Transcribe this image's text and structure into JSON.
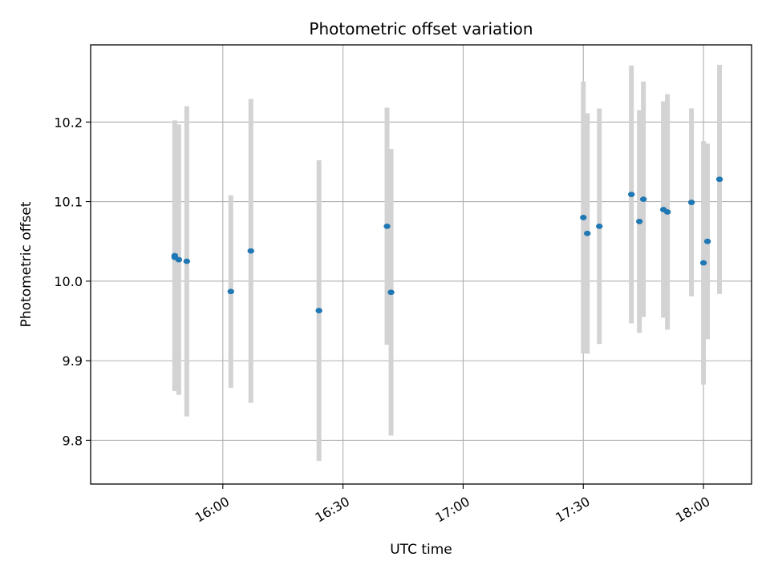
{
  "chart_data": {
    "type": "scatter",
    "title": "Photometric offset variation",
    "xlabel": "UTC time",
    "ylabel": "Photometric offset",
    "x_unit": "UTC time (HH:MM)",
    "xlim": [
      "15:27",
      "18:12"
    ],
    "ylim": [
      9.745,
      10.297
    ],
    "xticks": [
      "16:00",
      "16:30",
      "17:00",
      "17:30",
      "18:00"
    ],
    "yticks": [
      9.8,
      9.9,
      10.0,
      10.1,
      10.2
    ],
    "grid": true,
    "marker_color": "#1f77b4",
    "errorbar_color": "#d3d3d3",
    "points": [
      {
        "x": "15:48",
        "y": 10.03,
        "yerr": 0.168
      },
      {
        "x": "15:48",
        "y": 10.032,
        "yerr": 0.17
      },
      {
        "x": "15:49",
        "y": 10.027,
        "yerr": 0.17
      },
      {
        "x": "15:51",
        "y": 10.025,
        "yerr": 0.195
      },
      {
        "x": "16:02",
        "y": 9.987,
        "yerr": 0.121
      },
      {
        "x": "16:07",
        "y": 10.038,
        "yerr": 0.191
      },
      {
        "x": "16:24",
        "y": 9.963,
        "yerr": 0.189
      },
      {
        "x": "16:41",
        "y": 10.069,
        "yerr": 0.149
      },
      {
        "x": "16:42",
        "y": 9.986,
        "yerr": 0.18
      },
      {
        "x": "17:30",
        "y": 10.08,
        "yerr": 0.171
      },
      {
        "x": "17:31",
        "y": 10.06,
        "yerr": 0.151
      },
      {
        "x": "17:34",
        "y": 10.069,
        "yerr": 0.148
      },
      {
        "x": "17:42",
        "y": 10.109,
        "yerr": 0.162
      },
      {
        "x": "17:44",
        "y": 10.075,
        "yerr": 0.14
      },
      {
        "x": "17:45",
        "y": 10.103,
        "yerr": 0.148
      },
      {
        "x": "17:50",
        "y": 10.09,
        "yerr": 0.136
      },
      {
        "x": "17:51",
        "y": 10.087,
        "yerr": 0.148
      },
      {
        "x": "17:57",
        "y": 10.099,
        "yerr": 0.118
      },
      {
        "x": "18:00",
        "y": 10.023,
        "yerr": 0.153
      },
      {
        "x": "18:01",
        "y": 10.05,
        "yerr": 0.123
      },
      {
        "x": "18:04",
        "y": 10.128,
        "yerr": 0.144
      }
    ]
  }
}
